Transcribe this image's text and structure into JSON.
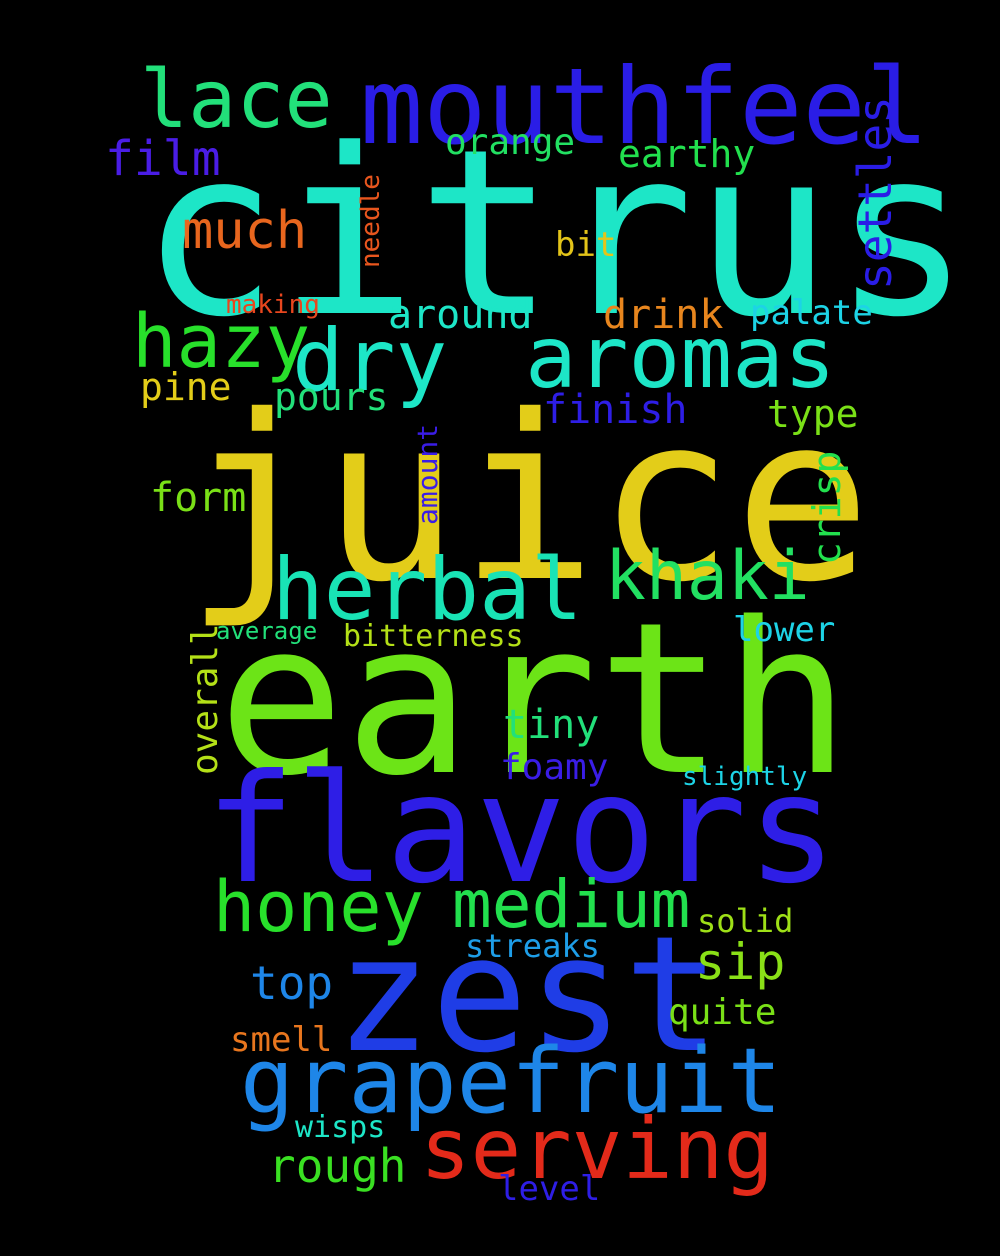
{
  "word_cloud": {
    "background": "#000000",
    "words": [
      {
        "text": "citrus",
        "color": "#1de6c7"
      },
      {
        "text": "juice",
        "color": "#e3cd19"
      },
      {
        "text": "earth",
        "color": "#6ce417"
      },
      {
        "text": "flavors",
        "color": "#2e1ee6"
      },
      {
        "text": "zest",
        "color": "#1f3de6"
      },
      {
        "text": "mouthfeel",
        "color": "#2a1de6"
      },
      {
        "text": "aromas",
        "color": "#1de6c7"
      },
      {
        "text": "dry",
        "color": "#1de6c7"
      },
      {
        "text": "hazy",
        "color": "#28e02b"
      },
      {
        "text": "lace",
        "color": "#22e07a"
      },
      {
        "text": "herbal",
        "color": "#19e3b5"
      },
      {
        "text": "khaki",
        "color": "#22e062"
      },
      {
        "text": "grapefruit",
        "color": "#1e86e8"
      },
      {
        "text": "serving",
        "color": "#e32a1a"
      },
      {
        "text": "honey",
        "color": "#28e02b"
      },
      {
        "text": "medium",
        "color": "#22e04e"
      },
      {
        "text": "settles",
        "color": "#2a1de6"
      },
      {
        "text": "film",
        "color": "#4a1de6"
      },
      {
        "text": "orange",
        "color": "#22e062"
      },
      {
        "text": "earthy",
        "color": "#22e04e"
      },
      {
        "text": "much",
        "color": "#e8661e"
      },
      {
        "text": "bit",
        "color": "#e3c419"
      },
      {
        "text": "needle",
        "color": "#e8561e"
      },
      {
        "text": "making",
        "color": "#e8461e"
      },
      {
        "text": "around",
        "color": "#1de6c7"
      },
      {
        "text": "drink",
        "color": "#e8861e"
      },
      {
        "text": "palate",
        "color": "#1dd3e6"
      },
      {
        "text": "pine",
        "color": "#e3cd19"
      },
      {
        "text": "pours",
        "color": "#22e07a"
      },
      {
        "text": "finish",
        "color": "#2e1ee6"
      },
      {
        "text": "type",
        "color": "#7ae017"
      },
      {
        "text": "amount",
        "color": "#3a1de6"
      },
      {
        "text": "form",
        "color": "#7ae017"
      },
      {
        "text": "crisp",
        "color": "#22e04e"
      },
      {
        "text": "average",
        "color": "#22e07a"
      },
      {
        "text": "bitterness",
        "color": "#b4e017"
      },
      {
        "text": "lower",
        "color": "#1dd3e6"
      },
      {
        "text": "overall",
        "color": "#b4e017"
      },
      {
        "text": "tiny",
        "color": "#22e07a"
      },
      {
        "text": "foamy",
        "color": "#3a1de6"
      },
      {
        "text": "slightly",
        "color": "#1dd3e6"
      },
      {
        "text": "solid",
        "color": "#9ee017"
      },
      {
        "text": "sip",
        "color": "#8ae017"
      },
      {
        "text": "streaks",
        "color": "#1e9ee8"
      },
      {
        "text": "top",
        "color": "#1e86e8"
      },
      {
        "text": "quite",
        "color": "#7ae017"
      },
      {
        "text": "smell",
        "color": "#e8761e"
      },
      {
        "text": "rough",
        "color": "#3ae022"
      },
      {
        "text": "wisps",
        "color": "#1de6c7"
      },
      {
        "text": "level",
        "color": "#2e1ee6"
      }
    ]
  }
}
